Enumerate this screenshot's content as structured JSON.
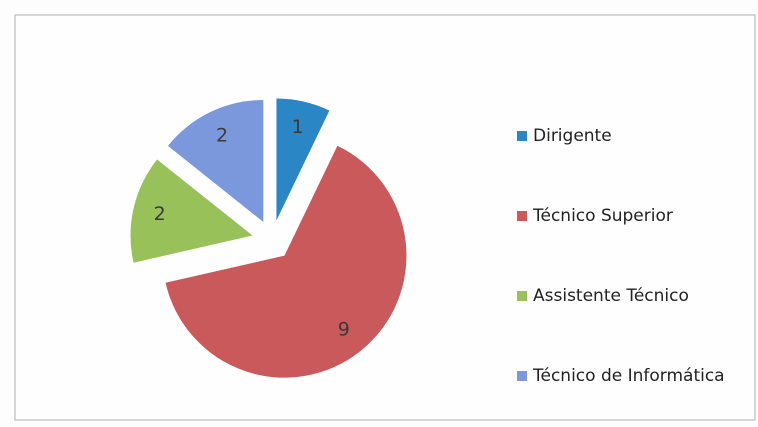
{
  "chart_data": {
    "type": "pie",
    "categories": [
      "Dirigente",
      "Técnico Superior",
      "Assistente Técnico",
      "Técnico de Informática"
    ],
    "values": [
      1,
      9,
      2,
      2
    ],
    "colors": [
      "#2a86c4",
      "#c9595a",
      "#98c15a",
      "#7b98dc"
    ],
    "legend": "right"
  }
}
